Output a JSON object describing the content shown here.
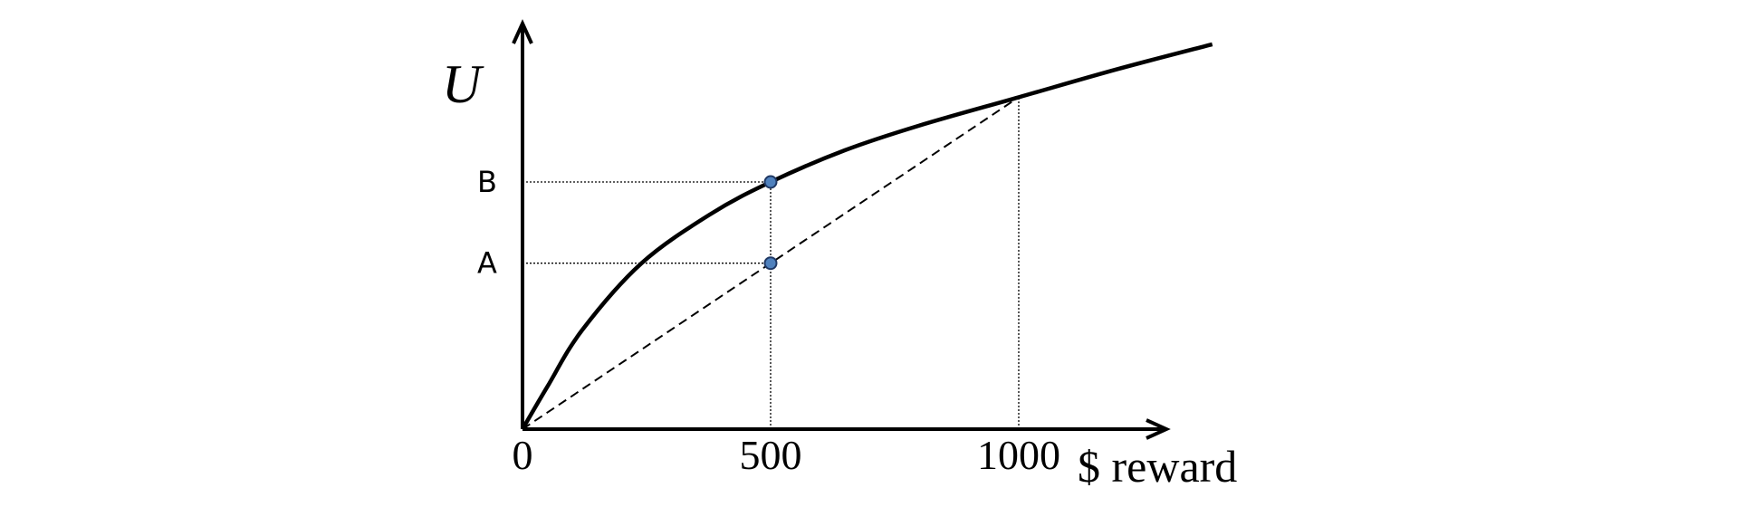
{
  "chart_data": {
    "type": "line",
    "title": "",
    "xlabel": "$ reward",
    "ylabel": "U",
    "x_ticks": [
      "0",
      "500",
      "1000"
    ],
    "xlim": [
      0,
      1390
    ],
    "ylim": [
      0,
      100
    ],
    "series": [
      {
        "style": "solid",
        "x": [
          0,
          50,
          120,
          240,
          380,
          500,
          650,
          800,
          1000,
          1200,
          1390
        ],
        "y": [
          0,
          12,
          28,
          47,
          61,
          70,
          79,
          86,
          94,
          102,
          109
        ]
      },
      {
        "style": "dashed",
        "x": [
          0,
          1000
        ],
        "y": [
          0,
          94
        ]
      }
    ],
    "points": [
      {
        "label": "B",
        "x": 500,
        "y": 70
      },
      {
        "label": "A",
        "x": 500,
        "y": 47
      }
    ],
    "guide_lines": [
      {
        "from_point": "B",
        "to": "y-axis"
      },
      {
        "from_point": "A",
        "to": "y-axis"
      },
      {
        "x": 500,
        "to": "x-axis"
      },
      {
        "x": 1000,
        "to": "x-axis"
      }
    ],
    "grid": false,
    "legend": "none",
    "colors": {
      "curve": "#000000",
      "point_fill": "#4f81bd",
      "point_stroke": "#1f3864"
    }
  }
}
